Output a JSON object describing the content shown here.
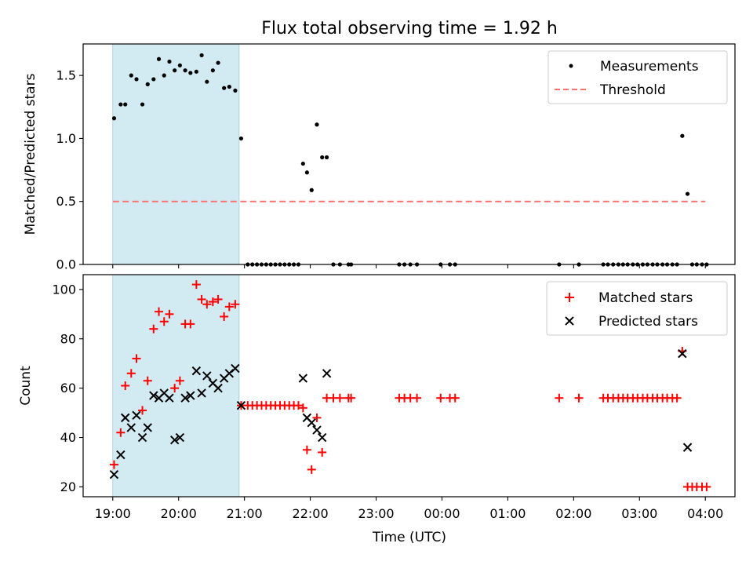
{
  "figure": {
    "title": "Flux total observing time = 1.92 h",
    "shade_color": "#add8e6",
    "xlabel": "Time (UTC)",
    "x_ticks": [
      "19:00",
      "20:00",
      "21:00",
      "22:00",
      "23:00",
      "00:00",
      "01:00",
      "02:00",
      "03:00",
      "04:00"
    ]
  },
  "chart_data": [
    {
      "type": "scatter",
      "title": "Flux total observing time = 1.92 h",
      "xlabel": "",
      "ylabel": "Matched/Predicted stars",
      "x_unit": "hours after 19:00 UTC",
      "xlim": [
        -0.45,
        9.45
      ],
      "ylim": [
        0,
        1.75
      ],
      "y_ticks": [
        "0.0",
        "0.5",
        "1.0",
        "1.5"
      ],
      "grid": false,
      "legend_position": "top-right",
      "shaded_region": {
        "x": [
          0.0,
          1.92
        ],
        "color": "#add8e6"
      },
      "threshold": {
        "name": "Threshold",
        "y": 0.5,
        "x": [
          0.0,
          9.0
        ],
        "color": "#ff7070",
        "style": "dashed"
      },
      "series": [
        {
          "name": "Measurements",
          "color": "#000000",
          "marker": "dot",
          "points": [
            [
              0.02,
              1.16
            ],
            [
              0.12,
              1.27
            ],
            [
              0.19,
              1.27
            ],
            [
              0.28,
              1.5
            ],
            [
              0.36,
              1.47
            ],
            [
              0.45,
              1.27
            ],
            [
              0.53,
              1.43
            ],
            [
              0.62,
              1.47
            ],
            [
              0.7,
              1.63
            ],
            [
              0.78,
              1.5
            ],
            [
              0.86,
              1.61
            ],
            [
              0.94,
              1.54
            ],
            [
              1.02,
              1.58
            ],
            [
              1.1,
              1.54
            ],
            [
              1.18,
              1.52
            ],
            [
              1.27,
              1.53
            ],
            [
              1.35,
              1.66
            ],
            [
              1.43,
              1.45
            ],
            [
              1.52,
              1.54
            ],
            [
              1.6,
              1.6
            ],
            [
              1.69,
              1.4
            ],
            [
              1.77,
              1.41
            ],
            [
              1.86,
              1.38
            ],
            [
              1.95,
              1.0
            ],
            [
              2.05,
              0
            ],
            [
              2.12,
              0
            ],
            [
              2.19,
              0
            ],
            [
              2.26,
              0
            ],
            [
              2.33,
              0
            ],
            [
              2.4,
              0
            ],
            [
              2.47,
              0
            ],
            [
              2.54,
              0
            ],
            [
              2.61,
              0
            ],
            [
              2.68,
              0
            ],
            [
              2.75,
              0
            ],
            [
              2.82,
              0
            ],
            [
              2.89,
              0.8
            ],
            [
              2.95,
              0.73
            ],
            [
              3.02,
              0.59
            ],
            [
              3.1,
              1.11
            ],
            [
              3.18,
              0.85
            ],
            [
              3.25,
              0.85
            ],
            [
              3.35,
              0
            ],
            [
              3.45,
              0
            ],
            [
              3.58,
              0
            ],
            [
              3.62,
              0
            ],
            [
              4.35,
              0
            ],
            [
              4.43,
              0
            ],
            [
              4.52,
              0
            ],
            [
              4.62,
              0
            ],
            [
              4.98,
              0
            ],
            [
              5.12,
              0
            ],
            [
              5.2,
              0
            ],
            [
              6.78,
              0
            ],
            [
              7.08,
              0
            ],
            [
              7.45,
              0
            ],
            [
              7.52,
              0
            ],
            [
              7.6,
              0
            ],
            [
              7.68,
              0
            ],
            [
              7.75,
              0
            ],
            [
              7.82,
              0
            ],
            [
              7.9,
              0
            ],
            [
              7.97,
              0
            ],
            [
              8.05,
              0
            ],
            [
              8.12,
              0
            ],
            [
              8.2,
              0
            ],
            [
              8.27,
              0
            ],
            [
              8.35,
              0
            ],
            [
              8.42,
              0
            ],
            [
              8.5,
              0
            ],
            [
              8.57,
              0
            ],
            [
              8.65,
              1.02
            ],
            [
              8.73,
              0.56
            ],
            [
              8.8,
              0
            ],
            [
              8.87,
              0
            ],
            [
              8.95,
              0
            ],
            [
              9.02,
              0
            ]
          ]
        }
      ]
    },
    {
      "type": "scatter",
      "title": "",
      "xlabel": "Time (UTC)",
      "ylabel": "Count",
      "x_unit": "hours after 19:00 UTC",
      "xlim": [
        -0.45,
        9.45
      ],
      "ylim": [
        16,
        106
      ],
      "y_ticks": [
        "20",
        "40",
        "60",
        "80",
        "100"
      ],
      "grid": false,
      "legend_position": "top-right",
      "shaded_region": {
        "x": [
          0.0,
          1.92
        ],
        "color": "#add8e6"
      },
      "series": [
        {
          "name": "Matched stars",
          "color": "#ff0000",
          "marker": "plus",
          "points": [
            [
              0.02,
              29
            ],
            [
              0.12,
              42
            ],
            [
              0.19,
              61
            ],
            [
              0.28,
              66
            ],
            [
              0.36,
              72
            ],
            [
              0.45,
              51
            ],
            [
              0.53,
              63
            ],
            [
              0.62,
              84
            ],
            [
              0.7,
              91
            ],
            [
              0.78,
              87
            ],
            [
              0.86,
              90
            ],
            [
              0.94,
              60
            ],
            [
              1.02,
              63
            ],
            [
              1.1,
              86
            ],
            [
              1.18,
              86
            ],
            [
              1.27,
              102
            ],
            [
              1.35,
              96
            ],
            [
              1.43,
              94
            ],
            [
              1.52,
              95
            ],
            [
              1.6,
              96
            ],
            [
              1.69,
              89
            ],
            [
              1.77,
              93
            ],
            [
              1.86,
              94
            ],
            [
              1.95,
              53
            ],
            [
              2.05,
              53
            ],
            [
              2.12,
              53
            ],
            [
              2.19,
              53
            ],
            [
              2.26,
              53
            ],
            [
              2.33,
              53
            ],
            [
              2.4,
              53
            ],
            [
              2.47,
              53
            ],
            [
              2.54,
              53
            ],
            [
              2.61,
              53
            ],
            [
              2.68,
              53
            ],
            [
              2.75,
              53
            ],
            [
              2.82,
              53
            ],
            [
              2.89,
              52
            ],
            [
              2.95,
              35
            ],
            [
              3.02,
              27
            ],
            [
              3.1,
              48
            ],
            [
              3.18,
              34
            ],
            [
              3.25,
              56
            ],
            [
              3.35,
              56
            ],
            [
              3.45,
              56
            ],
            [
              3.58,
              56
            ],
            [
              3.62,
              56
            ],
            [
              4.35,
              56
            ],
            [
              4.43,
              56
            ],
            [
              4.52,
              56
            ],
            [
              4.62,
              56
            ],
            [
              4.98,
              56
            ],
            [
              5.12,
              56
            ],
            [
              5.2,
              56
            ],
            [
              6.78,
              56
            ],
            [
              7.08,
              56
            ],
            [
              7.45,
              56
            ],
            [
              7.52,
              56
            ],
            [
              7.6,
              56
            ],
            [
              7.68,
              56
            ],
            [
              7.75,
              56
            ],
            [
              7.82,
              56
            ],
            [
              7.9,
              56
            ],
            [
              7.97,
              56
            ],
            [
              8.05,
              56
            ],
            [
              8.12,
              56
            ],
            [
              8.2,
              56
            ],
            [
              8.27,
              56
            ],
            [
              8.35,
              56
            ],
            [
              8.42,
              56
            ],
            [
              8.5,
              56
            ],
            [
              8.57,
              56
            ],
            [
              8.65,
              75
            ],
            [
              8.73,
              20
            ],
            [
              8.8,
              20
            ],
            [
              8.87,
              20
            ],
            [
              8.95,
              20
            ],
            [
              9.02,
              20
            ]
          ]
        },
        {
          "name": "Predicted stars",
          "color": "#000000",
          "marker": "x",
          "points": [
            [
              0.02,
              25
            ],
            [
              0.12,
              33
            ],
            [
              0.19,
              48
            ],
            [
              0.28,
              44
            ],
            [
              0.36,
              49
            ],
            [
              0.45,
              40
            ],
            [
              0.53,
              44
            ],
            [
              0.62,
              57
            ],
            [
              0.7,
              56
            ],
            [
              0.78,
              58
            ],
            [
              0.86,
              56
            ],
            [
              0.94,
              39
            ],
            [
              1.02,
              40
            ],
            [
              1.1,
              56
            ],
            [
              1.18,
              57
            ],
            [
              1.27,
              67
            ],
            [
              1.35,
              58
            ],
            [
              1.43,
              65
            ],
            [
              1.52,
              62
            ],
            [
              1.6,
              60
            ],
            [
              1.69,
              64
            ],
            [
              1.77,
              66
            ],
            [
              1.86,
              68
            ],
            [
              1.95,
              53
            ],
            [
              2.89,
              64
            ],
            [
              2.95,
              48
            ],
            [
              3.02,
              46
            ],
            [
              3.1,
              43
            ],
            [
              3.18,
              40
            ],
            [
              3.25,
              66
            ],
            [
              8.65,
              74
            ],
            [
              8.73,
              36
            ]
          ]
        }
      ]
    }
  ]
}
